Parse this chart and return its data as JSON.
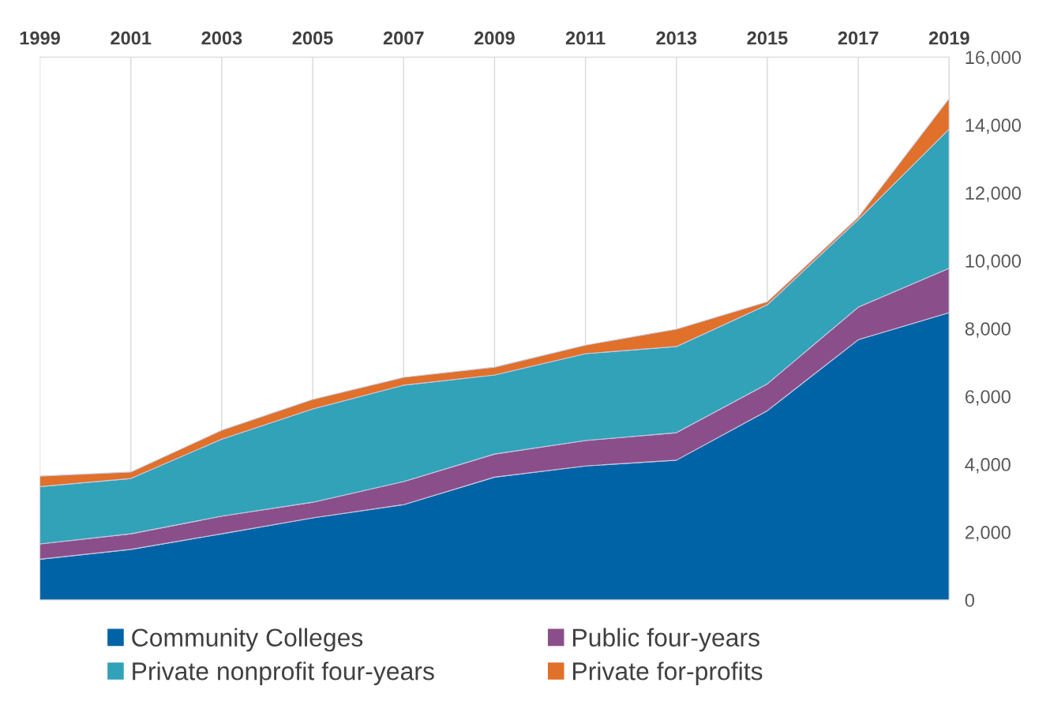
{
  "chart_data": {
    "type": "area",
    "stacked": true,
    "categories": [
      "1999",
      "2001",
      "2003",
      "2005",
      "2007",
      "2009",
      "2011",
      "2013",
      "2015",
      "2017",
      "2019"
    ],
    "series": [
      {
        "name": "Community Colleges",
        "color": "#0063a6",
        "values": [
          1200,
          1490,
          1950,
          2420,
          2810,
          3620,
          3950,
          4120,
          5580,
          7670,
          8470
        ]
      },
      {
        "name": "Public four-years",
        "color": "#8a4f8a",
        "values": [
          450,
          460,
          520,
          460,
          680,
          680,
          750,
          810,
          790,
          960,
          1310
        ]
      },
      {
        "name": "Private nonprofit four-years",
        "color": "#31a2b8",
        "values": [
          1690,
          1630,
          2270,
          2750,
          2840,
          2330,
          2560,
          2540,
          2330,
          2580,
          4100
        ]
      },
      {
        "name": "Private for-profits",
        "color": "#e0702a",
        "values": [
          310,
          190,
          260,
          280,
          230,
          230,
          250,
          510,
          90,
          70,
          900
        ]
      }
    ],
    "ylim": [
      0,
      16000
    ],
    "yticks": [
      {
        "value": 0,
        "label": "0"
      },
      {
        "value": 2000,
        "label": "2,000"
      },
      {
        "value": 4000,
        "label": "4,000"
      },
      {
        "value": 6000,
        "label": "6,000"
      },
      {
        "value": 8000,
        "label": "8,000"
      },
      {
        "value": 10000,
        "label": "10,000"
      },
      {
        "value": 12000,
        "label": "12,000"
      },
      {
        "value": 14000,
        "label": "14,000"
      },
      {
        "value": 16000,
        "label": "16,000"
      }
    ],
    "grid": "x",
    "legend": "bottom"
  }
}
